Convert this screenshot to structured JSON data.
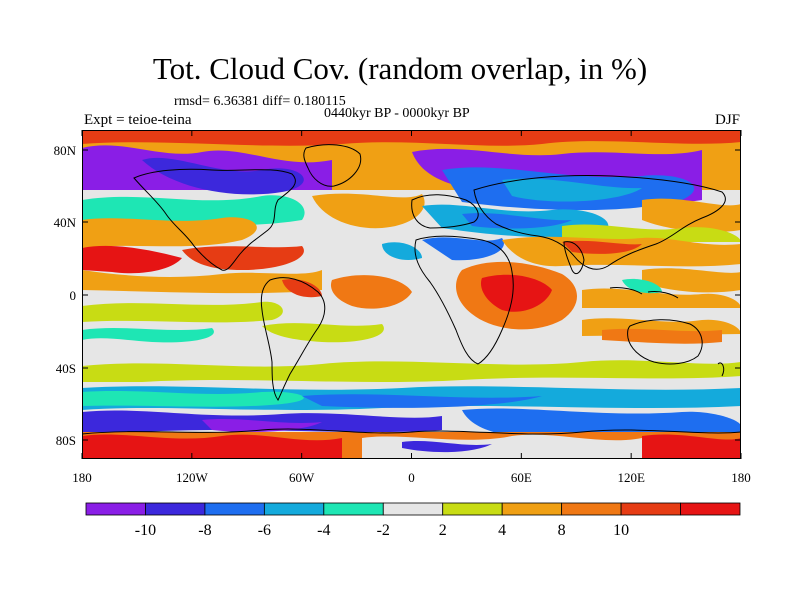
{
  "title": "Tot. Cloud Cov. (random overlap, in %)",
  "stats": "rmsd= 6.36381 diff= 0.180115",
  "period": "0440kyr BP - 0000kyr BP",
  "experiment": "Expt = teioe-teina",
  "season": "DJF",
  "axes": {
    "x_ticks": [
      "180",
      "120W",
      "60W",
      "0",
      "60E",
      "120E",
      "180"
    ],
    "y_ticks": [
      "80N",
      "40N",
      "0",
      "40S",
      "80S"
    ]
  },
  "colorbar": {
    "labels": [
      "-10",
      "-8",
      "-6",
      "-4",
      "-2",
      "2",
      "4",
      "8",
      "10"
    ],
    "colors": [
      "#8a1ee6",
      "#3c28dc",
      "#1e6ef0",
      "#14aadc",
      "#1ee6b4",
      "#e6e6e6",
      "#c8dc14",
      "#f0a014",
      "#f07814",
      "#e63c14",
      "#e61414"
    ]
  },
  "map_style": {
    "ocean_base": "#f0a014",
    "land_outline": "#000000"
  }
}
